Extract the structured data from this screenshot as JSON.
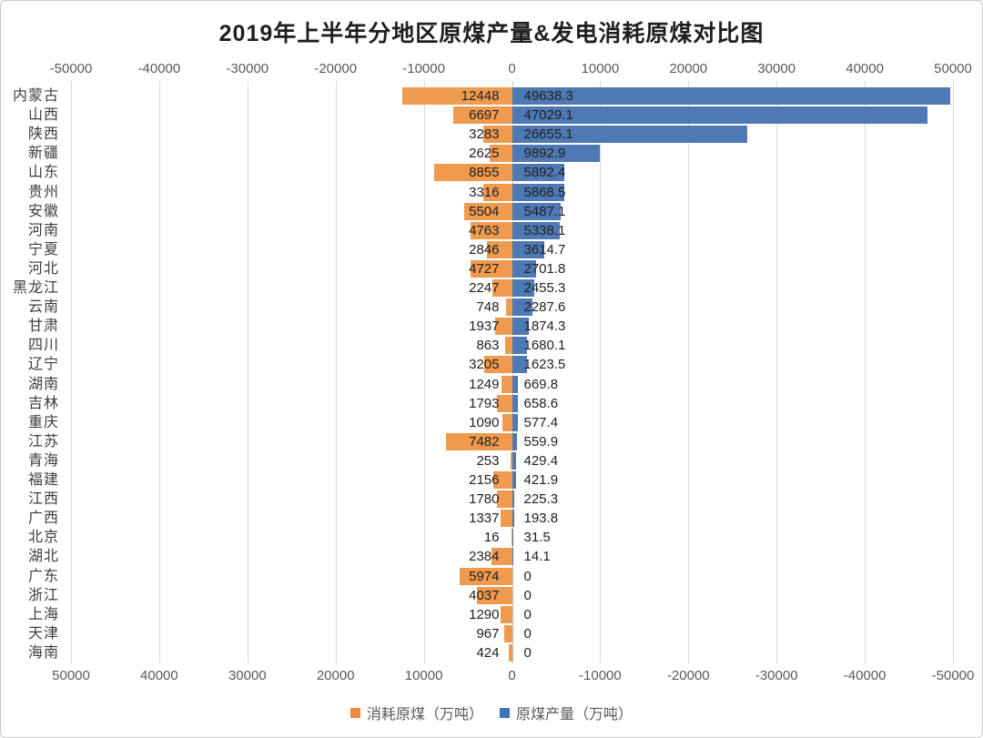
{
  "title": "2019年上半年分地区原煤产量&发电消耗原煤对比图",
  "axis": {
    "top_ticks": [
      "-50000",
      "-40000",
      "-30000",
      "-20000",
      "-10000",
      "0",
      "10000",
      "20000",
      "30000",
      "40000",
      "50000"
    ],
    "bottom_ticks": [
      "50000",
      "40000",
      "30000",
      "20000",
      "10000",
      "0",
      "-10000",
      "-20000",
      "-30000",
      "-40000",
      "-50000"
    ]
  },
  "legend": {
    "items": [
      {
        "label": "消耗原煤（万吨）",
        "color": "#ED8A3C"
      },
      {
        "label": "原煤产量（万吨）",
        "color": "#3D74BB"
      }
    ]
  },
  "chart_data": {
    "type": "bar",
    "variant": "diverging-horizontal-tornado",
    "title": "2019年上半年分地区原煤产量&发电消耗原煤对比图",
    "categories": [
      "内蒙古",
      "山西",
      "陕西",
      "新疆",
      "山东",
      "贵州",
      "安徽",
      "河南",
      "宁夏",
      "河北",
      "黑龙江",
      "云南",
      "甘肃",
      "四川",
      "辽宁",
      "湖南",
      "吉林",
      "重庆",
      "江苏",
      "青海",
      "福建",
      "江西",
      "广西",
      "北京",
      "湖北",
      "广东",
      "浙江",
      "上海",
      "天津",
      "海南"
    ],
    "series": [
      {
        "name": "消耗原煤（万吨）",
        "color": "#EF9A4E",
        "direction": "left",
        "values": [
          12448,
          6697,
          3283,
          2625,
          8855,
          3316,
          5504,
          4763,
          2846,
          4727,
          2247,
          748,
          1937,
          863,
          3205,
          1249,
          1793,
          1090,
          7482,
          253,
          2156,
          1780,
          1337,
          16,
          2384,
          5974,
          4037,
          1290,
          967,
          424
        ]
      },
      {
        "name": "原煤产量（万吨）",
        "color": "#4E79B5",
        "direction": "right",
        "values": [
          49638.3,
          47029.1,
          26655.1,
          9892.9,
          5892.4,
          5868.5,
          5487.1,
          5338.1,
          3614.7,
          2701.8,
          2455.3,
          2287.6,
          1874.3,
          1680.1,
          1623.5,
          669.8,
          658.6,
          577.4,
          559.9,
          429.4,
          421.9,
          225.3,
          193.8,
          31.5,
          14.1,
          0,
          0,
          0,
          0,
          0
        ]
      }
    ],
    "xlim": [
      -50000,
      50000
    ],
    "grid": true,
    "legend_position": "bottom",
    "value_labels": "at bar base, both sides of center axis, black text"
  }
}
